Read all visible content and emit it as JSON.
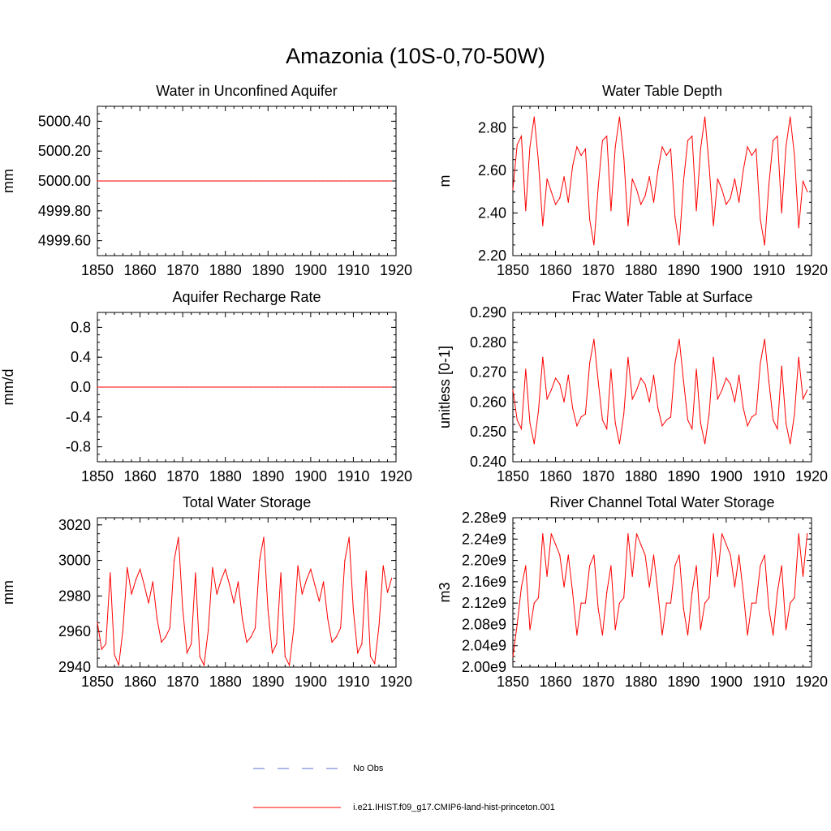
{
  "title": "Amazonia (10S-0,70-50W)",
  "legend": [
    {
      "label": "No Obs",
      "color": "#5b6fd6",
      "dash": "dashed"
    },
    {
      "label": "i.e21.IHIST.f09_g17.CMIP6-land-hist-princeton.001",
      "color": "#ff0000",
      "dash": "solid"
    }
  ],
  "colors": {
    "series": "#ff0000",
    "obs": "#5b6fd6",
    "axis": "#000000"
  },
  "chart_data": [
    {
      "type": "line",
      "title": "Water in Unconfined Aquifer",
      "ylabel": "mm",
      "xlabel": "",
      "xlim": [
        1850,
        1920
      ],
      "ylim": [
        4999.5,
        5000.5
      ],
      "xticks": [
        "1850",
        "1860",
        "1870",
        "1880",
        "1890",
        "1900",
        "1910",
        "1920"
      ],
      "yticks": [
        4999.6,
        4999.8,
        5000.0,
        5000.2,
        5000.4
      ],
      "ytick_labels": [
        "4999.60",
        "4999.80",
        "5000.00",
        "5000.20",
        "5000.40"
      ],
      "x": [
        1850,
        1851,
        1852,
        1853,
        1854,
        1855,
        1856,
        1857,
        1858,
        1859,
        1860,
        1861,
        1862,
        1863,
        1864,
        1865,
        1866,
        1867,
        1868,
        1869,
        1870,
        1871,
        1872,
        1873,
        1874,
        1875,
        1876,
        1877,
        1878,
        1879,
        1880,
        1881,
        1882,
        1883,
        1884,
        1885,
        1886,
        1887,
        1888,
        1889,
        1890,
        1891,
        1892,
        1893,
        1894,
        1895,
        1896,
        1897,
        1898,
        1899,
        1900,
        1901,
        1902,
        1903,
        1904,
        1905,
        1906,
        1907,
        1908,
        1909,
        1910,
        1911,
        1912,
        1913,
        1914,
        1915,
        1916,
        1917,
        1918,
        1919
      ],
      "values": [
        5000,
        5000,
        5000,
        5000,
        5000,
        5000,
        5000,
        5000,
        5000,
        5000,
        5000,
        5000,
        5000,
        5000,
        5000,
        5000,
        5000,
        5000,
        5000,
        5000,
        5000,
        5000,
        5000,
        5000,
        5000,
        5000,
        5000,
        5000,
        5000,
        5000,
        5000,
        5000,
        5000,
        5000,
        5000,
        5000,
        5000,
        5000,
        5000,
        5000,
        5000,
        5000,
        5000,
        5000,
        5000,
        5000,
        5000,
        5000,
        5000,
        5000,
        5000,
        5000,
        5000,
        5000,
        5000,
        5000,
        5000,
        5000,
        5000,
        5000,
        5000,
        5000,
        5000,
        5000,
        5000,
        5000,
        5000,
        5000,
        5000,
        5000
      ]
    },
    {
      "type": "line",
      "title": "Water Table Depth",
      "ylabel": "m",
      "xlabel": "",
      "xlim": [
        1850,
        1920
      ],
      "ylim": [
        2.2,
        2.9
      ],
      "xticks": [
        "1850",
        "1860",
        "1870",
        "1880",
        "1890",
        "1900",
        "1910",
        "1920"
      ],
      "yticks": [
        2.2,
        2.4,
        2.6,
        2.8
      ],
      "ytick_labels": [
        "2.20",
        "2.40",
        "2.60",
        "2.80"
      ],
      "x": [
        1850,
        1851,
        1852,
        1853,
        1854,
        1855,
        1856,
        1857,
        1858,
        1859,
        1860,
        1861,
        1862,
        1863,
        1864,
        1865,
        1866,
        1867,
        1868,
        1869,
        1870,
        1871,
        1872,
        1873,
        1874,
        1875,
        1876,
        1877,
        1878,
        1879,
        1880,
        1881,
        1882,
        1883,
        1884,
        1885,
        1886,
        1887,
        1888,
        1889,
        1890,
        1891,
        1892,
        1893,
        1894,
        1895,
        1896,
        1897,
        1898,
        1899,
        1900,
        1901,
        1902,
        1903,
        1904,
        1905,
        1906,
        1907,
        1908,
        1909,
        1910,
        1911,
        1912,
        1913,
        1914,
        1915,
        1916,
        1917,
        1918,
        1919
      ],
      "values": [
        2.51,
        2.72,
        2.76,
        2.41,
        2.71,
        2.85,
        2.64,
        2.34,
        2.56,
        2.5,
        2.44,
        2.47,
        2.57,
        2.45,
        2.62,
        2.71,
        2.67,
        2.7,
        2.37,
        2.25,
        2.52,
        2.74,
        2.76,
        2.41,
        2.71,
        2.85,
        2.66,
        2.34,
        2.56,
        2.51,
        2.44,
        2.48,
        2.57,
        2.45,
        2.6,
        2.71,
        2.67,
        2.7,
        2.38,
        2.25,
        2.55,
        2.74,
        2.76,
        2.41,
        2.7,
        2.85,
        2.62,
        2.34,
        2.56,
        2.51,
        2.44,
        2.47,
        2.56,
        2.45,
        2.6,
        2.71,
        2.67,
        2.7,
        2.37,
        2.25,
        2.53,
        2.74,
        2.76,
        2.4,
        2.71,
        2.85,
        2.67,
        2.33,
        2.55,
        2.5
      ]
    },
    {
      "type": "line",
      "title": "Aquifer Recharge Rate",
      "ylabel": "mm/d",
      "xlabel": "",
      "xlim": [
        1850,
        1920
      ],
      "ylim": [
        -1.0,
        1.0
      ],
      "xticks": [
        "1850",
        "1860",
        "1870",
        "1880",
        "1890",
        "1900",
        "1910",
        "1920"
      ],
      "yticks": [
        -0.8,
        -0.4,
        0.0,
        0.4,
        0.8
      ],
      "ytick_labels": [
        "-0.8",
        "-0.4",
        "0.0",
        "0.4",
        "0.8"
      ],
      "x": [
        1850,
        1851,
        1852,
        1853,
        1854,
        1855,
        1856,
        1857,
        1858,
        1859,
        1860,
        1861,
        1862,
        1863,
        1864,
        1865,
        1866,
        1867,
        1868,
        1869,
        1870,
        1871,
        1872,
        1873,
        1874,
        1875,
        1876,
        1877,
        1878,
        1879,
        1880,
        1881,
        1882,
        1883,
        1884,
        1885,
        1886,
        1887,
        1888,
        1889,
        1890,
        1891,
        1892,
        1893,
        1894,
        1895,
        1896,
        1897,
        1898,
        1899,
        1900,
        1901,
        1902,
        1903,
        1904,
        1905,
        1906,
        1907,
        1908,
        1909,
        1910,
        1911,
        1912,
        1913,
        1914,
        1915,
        1916,
        1917,
        1918,
        1919
      ],
      "values": [
        0,
        0,
        0,
        0,
        0,
        0,
        0,
        0,
        0,
        0,
        0,
        0,
        0,
        0,
        0,
        0,
        0,
        0,
        0,
        0,
        0,
        0,
        0,
        0,
        0,
        0,
        0,
        0,
        0,
        0,
        0,
        0,
        0,
        0,
        0,
        0,
        0,
        0,
        0,
        0,
        0,
        0,
        0,
        0,
        0,
        0,
        0,
        0,
        0,
        0,
        0,
        0,
        0,
        0,
        0,
        0,
        0,
        0,
        0,
        0,
        0,
        0,
        0,
        0,
        0,
        0,
        0,
        0,
        0,
        0
      ]
    },
    {
      "type": "line",
      "title": "Frac Water Table at Surface",
      "ylabel": "unitless [0-1]",
      "xlabel": "",
      "xlim": [
        1850,
        1920
      ],
      "ylim": [
        0.24,
        0.29
      ],
      "xticks": [
        "1850",
        "1860",
        "1870",
        "1880",
        "1890",
        "1900",
        "1910",
        "1920"
      ],
      "yticks": [
        0.24,
        0.25,
        0.26,
        0.27,
        0.28,
        0.29
      ],
      "ytick_labels": [
        "0.240",
        "0.250",
        "0.260",
        "0.270",
        "0.280",
        "0.290"
      ],
      "x": [
        1850,
        1851,
        1852,
        1853,
        1854,
        1855,
        1856,
        1857,
        1858,
        1859,
        1860,
        1861,
        1862,
        1863,
        1864,
        1865,
        1866,
        1867,
        1868,
        1869,
        1870,
        1871,
        1872,
        1873,
        1874,
        1875,
        1876,
        1877,
        1878,
        1879,
        1880,
        1881,
        1882,
        1883,
        1884,
        1885,
        1886,
        1887,
        1888,
        1889,
        1890,
        1891,
        1892,
        1893,
        1894,
        1895,
        1896,
        1897,
        1898,
        1899,
        1900,
        1901,
        1902,
        1903,
        1904,
        1905,
        1906,
        1907,
        1908,
        1909,
        1910,
        1911,
        1912,
        1913,
        1914,
        1915,
        1916,
        1917,
        1918,
        1919
      ],
      "values": [
        0.264,
        0.254,
        0.251,
        0.271,
        0.253,
        0.246,
        0.257,
        0.275,
        0.261,
        0.264,
        0.268,
        0.266,
        0.26,
        0.269,
        0.258,
        0.252,
        0.255,
        0.256,
        0.273,
        0.281,
        0.267,
        0.254,
        0.251,
        0.271,
        0.253,
        0.246,
        0.256,
        0.275,
        0.261,
        0.264,
        0.268,
        0.266,
        0.26,
        0.269,
        0.258,
        0.252,
        0.254,
        0.255,
        0.273,
        0.281,
        0.267,
        0.254,
        0.251,
        0.271,
        0.253,
        0.246,
        0.256,
        0.275,
        0.261,
        0.264,
        0.268,
        0.266,
        0.26,
        0.269,
        0.258,
        0.252,
        0.255,
        0.256,
        0.273,
        0.281,
        0.267,
        0.254,
        0.251,
        0.272,
        0.253,
        0.246,
        0.256,
        0.275,
        0.261,
        0.264
      ]
    },
    {
      "type": "line",
      "title": "Total Water Storage",
      "ylabel": "mm",
      "xlabel": "",
      "xlim": [
        1850,
        1920
      ],
      "ylim": [
        2940,
        3024
      ],
      "xticks": [
        "1850",
        "1860",
        "1870",
        "1880",
        "1890",
        "1900",
        "1910",
        "1920"
      ],
      "yticks": [
        2940,
        2960,
        2980,
        3000,
        3020
      ],
      "ytick_labels": [
        "2940",
        "2960",
        "2980",
        "3000",
        "3020"
      ],
      "x": [
        1850,
        1851,
        1852,
        1853,
        1854,
        1855,
        1856,
        1857,
        1858,
        1859,
        1860,
        1861,
        1862,
        1863,
        1864,
        1865,
        1866,
        1867,
        1868,
        1869,
        1870,
        1871,
        1872,
        1873,
        1874,
        1875,
        1876,
        1877,
        1878,
        1879,
        1880,
        1881,
        1882,
        1883,
        1884,
        1885,
        1886,
        1887,
        1888,
        1889,
        1890,
        1891,
        1892,
        1893,
        1894,
        1895,
        1896,
        1897,
        1898,
        1899,
        1900,
        1901,
        1902,
        1903,
        1904,
        1905,
        1906,
        1907,
        1908,
        1909,
        1910,
        1911,
        1912,
        1913,
        1914,
        1915,
        1916,
        1917,
        1918,
        1919
      ],
      "values": [
        2965,
        2950,
        2953,
        2993,
        2947,
        2941,
        2961,
        2996,
        2981,
        2989,
        2995,
        2986,
        2976,
        2988,
        2967,
        2954,
        2957,
        2962,
        3000,
        3013,
        2973,
        2948,
        2953,
        2993,
        2946,
        2941,
        2961,
        2996,
        2981,
        2989,
        2995,
        2986,
        2976,
        2988,
        2967,
        2954,
        2957,
        2962,
        3000,
        3013,
        2972,
        2948,
        2953,
        2993,
        2946,
        2941,
        2961,
        2997,
        2981,
        2989,
        2995,
        2986,
        2977,
        2988,
        2967,
        2954,
        2957,
        2962,
        3000,
        3013,
        2972,
        2948,
        2953,
        2994,
        2946,
        2942,
        2963,
        2997,
        2982,
        2990
      ]
    },
    {
      "type": "line",
      "title": "River Channel Total Water Storage",
      "ylabel": "m3",
      "xlabel": "",
      "xlim": [
        1850,
        1920
      ],
      "ylim": [
        2000000000.0,
        2280000000.0
      ],
      "xticks": [
        "1850",
        "1860",
        "1870",
        "1880",
        "1890",
        "1900",
        "1910",
        "1920"
      ],
      "yticks": [
        2000000000.0,
        2040000000.0,
        2080000000.0,
        2120000000.0,
        2160000000.0,
        2200000000.0,
        2240000000.0,
        2280000000.0
      ],
      "ytick_labels": [
        "2.00e9",
        "2.04e9",
        "2.08e9",
        "2.12e9",
        "2.16e9",
        "2.20e9",
        "2.24e9",
        "2.28e9"
      ],
      "x": [
        1850,
        1851,
        1852,
        1853,
        1854,
        1855,
        1856,
        1857,
        1858,
        1859,
        1860,
        1861,
        1862,
        1863,
        1864,
        1865,
        1866,
        1867,
        1868,
        1869,
        1870,
        1871,
        1872,
        1873,
        1874,
        1875,
        1876,
        1877,
        1878,
        1879,
        1880,
        1881,
        1882,
        1883,
        1884,
        1885,
        1886,
        1887,
        1888,
        1889,
        1890,
        1891,
        1892,
        1893,
        1894,
        1895,
        1896,
        1897,
        1898,
        1899,
        1900,
        1901,
        1902,
        1903,
        1904,
        1905,
        1906,
        1907,
        1908,
        1909,
        1910,
        1911,
        1912,
        1913,
        1914,
        1915,
        1916,
        1917,
        1918,
        1919
      ],
      "values": [
        2020000000.0,
        2080000000.0,
        2150000000.0,
        2190000000.0,
        2070000000.0,
        2120000000.0,
        2130000000.0,
        2250000000.0,
        2170000000.0,
        2250000000.0,
        2230000000.0,
        2210000000.0,
        2150000000.0,
        2210000000.0,
        2140000000.0,
        2060000000.0,
        2120000000.0,
        2120000000.0,
        2190000000.0,
        2210000000.0,
        2110000000.0,
        2060000000.0,
        2140000000.0,
        2190000000.0,
        2070000000.0,
        2120000000.0,
        2130000000.0,
        2250000000.0,
        2170000000.0,
        2250000000.0,
        2230000000.0,
        2210000000.0,
        2150000000.0,
        2210000000.0,
        2140000000.0,
        2060000000.0,
        2120000000.0,
        2120000000.0,
        2190000000.0,
        2210000000.0,
        2110000000.0,
        2060000000.0,
        2140000000.0,
        2190000000.0,
        2070000000.0,
        2120000000.0,
        2130000000.0,
        2250000000.0,
        2170000000.0,
        2250000000.0,
        2230000000.0,
        2210000000.0,
        2150000000.0,
        2210000000.0,
        2140000000.0,
        2060000000.0,
        2120000000.0,
        2120000000.0,
        2190000000.0,
        2210000000.0,
        2110000000.0,
        2060000000.0,
        2140000000.0,
        2190000000.0,
        2070000000.0,
        2120000000.0,
        2130000000.0,
        2250000000.0,
        2170000000.0,
        2250000000.0
      ]
    }
  ]
}
